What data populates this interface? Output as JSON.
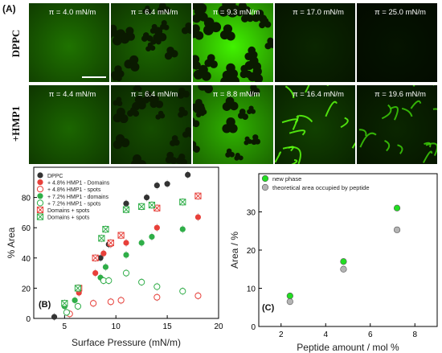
{
  "panel_a": {
    "label": "(A)",
    "rows": [
      {
        "name": "DPPC",
        "tiles": [
          {
            "pressure": "π = 4.0 mN/m",
            "brightness": 0.45,
            "pattern": "none"
          },
          {
            "pressure": "π = 6.4 mN/m",
            "brightness": 0.4,
            "pattern": "domains"
          },
          {
            "pressure": "π = 9.3 mN/m",
            "brightness": 0.95,
            "pattern": "domains"
          },
          {
            "pressure": "π = 17.0 mN/m",
            "brightness": 0.15,
            "pattern": "none"
          },
          {
            "pressure": "π = 25.0 mN/m",
            "brightness": 0.08,
            "pattern": "none"
          }
        ]
      },
      {
        "name": "+HMP1",
        "tiles": [
          {
            "pressure": "π = 4.4 mN/m",
            "brightness": 0.4,
            "pattern": "none"
          },
          {
            "pressure": "π = 6.4 mN/m",
            "brightness": 0.3,
            "pattern": "domains"
          },
          {
            "pressure": "π = 8.8 mN/m",
            "brightness": 0.7,
            "pattern": "domains"
          },
          {
            "pressure": "π = 16.4 mN/m",
            "brightness": 0.25,
            "pattern": "network"
          },
          {
            "pressure": "π = 19.6 mN/m",
            "brightness": 0.15,
            "pattern": "network"
          }
        ]
      }
    ],
    "colors": {
      "fluorescence": "#4cff00",
      "background": "#000000"
    }
  },
  "chart_data": [
    {
      "panel": "(B)",
      "type": "scatter",
      "xlabel": "Surface Pressure (mN/m)",
      "ylabel": "% Area",
      "xlim": [
        2,
        20
      ],
      "ylim": [
        0,
        100
      ],
      "xticks": [
        "5",
        "10",
        "15",
        "20"
      ],
      "yticks": [
        "0",
        "20",
        "40",
        "60",
        "80"
      ],
      "legend_position": "top-left",
      "series": [
        {
          "name": "DPPC",
          "marker": "filled-circle",
          "color": "#333333",
          "x": [
            4.0,
            6.4,
            8.5,
            9.3,
            11.0,
            13.0,
            14.0,
            15.0,
            17.0
          ],
          "y": [
            1,
            20,
            40,
            49,
            76,
            80,
            88,
            89,
            95
          ]
        },
        {
          "name": "+ 4.8% HMP1 - Domains",
          "marker": "filled-circle",
          "color": "#e8403a",
          "x": [
            6.4,
            8.0,
            8.8,
            9.5,
            11.0,
            14.0,
            18.0
          ],
          "y": [
            17,
            30,
            43,
            49,
            50,
            60,
            67
          ]
        },
        {
          "name": "+ 4.8% HMP1 - spots",
          "marker": "open-circle",
          "color": "#e8403a",
          "x": [
            5.5,
            7.8,
            9.5,
            10.5,
            14.0,
            18.0
          ],
          "y": [
            3,
            10,
            11,
            12,
            14,
            15
          ]
        },
        {
          "name": "+ 7.2% HMP1 - domains",
          "marker": "filled-circle",
          "color": "#2fae48",
          "x": [
            5.0,
            6.0,
            8.5,
            9.0,
            11.0,
            12.5,
            13.5,
            16.5
          ],
          "y": [
            8,
            12,
            27,
            34,
            42,
            50,
            54,
            59
          ]
        },
        {
          "name": "+ 7.2% HMP1 - spots",
          "marker": "open-circle",
          "color": "#2fae48",
          "x": [
            5.2,
            6.3,
            8.8,
            9.3,
            11.0,
            12.5,
            14.0,
            16.5
          ],
          "y": [
            4,
            8,
            25,
            25,
            30,
            24,
            21,
            18
          ]
        },
        {
          "name": "Domains + spots",
          "marker": "crossed-box",
          "color": "#e8403a",
          "x": [
            6.4,
            8.0,
            9.5,
            10.5,
            14.0,
            18.0
          ],
          "y": [
            20,
            40,
            50,
            55,
            73,
            81
          ]
        },
        {
          "name": "Domains + spots",
          "marker": "crossed-box",
          "color": "#2fae48",
          "x": [
            5.0,
            6.3,
            8.6,
            9.0,
            11.0,
            12.5,
            13.5,
            16.5
          ],
          "y": [
            10,
            20,
            53,
            59,
            72,
            74,
            75,
            77
          ]
        }
      ]
    },
    {
      "panel": "(C)",
      "type": "scatter",
      "xlabel": "Peptide amount / mol %",
      "ylabel": "Area / %",
      "xlim": [
        1,
        9
      ],
      "ylim": [
        0,
        40
      ],
      "xticks": [
        "2",
        "4",
        "6",
        "8"
      ],
      "yticks": [
        "0",
        "10",
        "20",
        "30"
      ],
      "legend_position": "top-left",
      "series": [
        {
          "name": "new phase",
          "marker": "filled-circle",
          "color": "#22dd22",
          "x": [
            2.4,
            4.8,
            7.2
          ],
          "y": [
            8,
            17,
            31
          ]
        },
        {
          "name": "theoretical area occupied by peptide",
          "marker": "filled-circle",
          "color": "#b4b4b4",
          "x": [
            2.4,
            4.8,
            7.2
          ],
          "y": [
            6.5,
            15,
            25.3
          ]
        }
      ]
    }
  ]
}
